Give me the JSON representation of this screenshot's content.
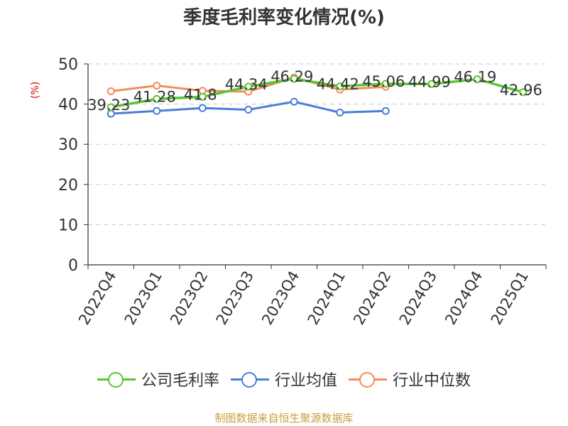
{
  "chart_data": {
    "type": "line",
    "title": "季度毛利率变化情况(%)",
    "xlabel": "",
    "ylabel": "(%)",
    "ylim": [
      0,
      50
    ],
    "yticks": [
      0,
      10,
      20,
      30,
      40,
      50
    ],
    "grid": true,
    "legend_position": "bottom",
    "categories": [
      "2022Q4",
      "2023Q1",
      "2023Q2",
      "2023Q3",
      "2023Q4",
      "2024Q1",
      "2024Q2",
      "2024Q3",
      "2024Q4",
      "2025Q1"
    ],
    "series": [
      {
        "name": "公司毛利率",
        "color": "#5ac531",
        "values": [
          39.23,
          41.28,
          41.8,
          44.34,
          46.29,
          44.42,
          45.06,
          44.99,
          46.19,
          42.96
        ],
        "labels": [
          "39.23",
          "41.28",
          "41.8",
          "44.34",
          "46.29",
          "44.42",
          "45.06",
          "44.99",
          "46.19",
          "42.96"
        ]
      },
      {
        "name": "行业均值",
        "color": "#4a7ed8",
        "values": [
          37.6,
          38.3,
          39.0,
          38.6,
          40.6,
          37.9,
          38.3,
          null,
          null,
          null
        ]
      },
      {
        "name": "行业中位数",
        "color": "#f28c5a",
        "values": [
          43.2,
          44.6,
          43.3,
          43.1,
          46.6,
          43.6,
          44.3,
          null,
          null,
          null
        ]
      }
    ]
  },
  "footer": {
    "source": "制图数据来自恒生聚源数据库"
  }
}
